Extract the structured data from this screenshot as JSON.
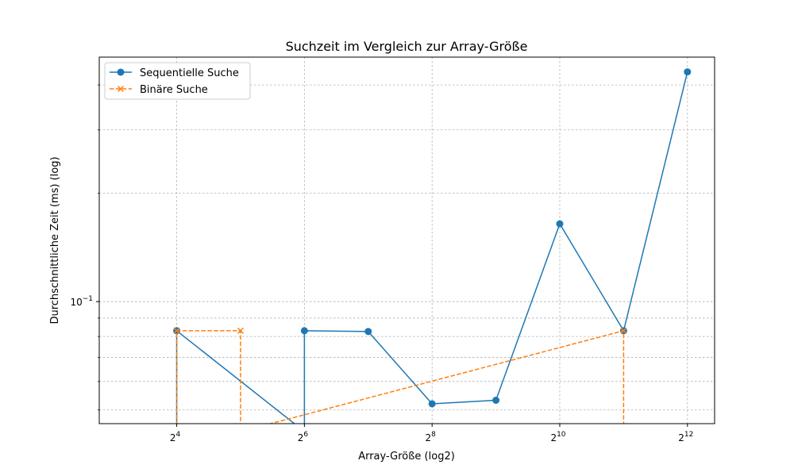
{
  "chart_data": {
    "type": "line",
    "title": "Suchzeit im Vergleich zur Array-Größe",
    "xlabel": "Array-Größe (log2)",
    "ylabel": "Durchschnittliche Zeit (ms) (log)",
    "x_scale": "log2",
    "y_scale": "log10",
    "xlim": [
      6.9,
      5500
    ],
    "ylim": [
      0.0458,
      0.478
    ],
    "xticks": [
      {
        "value": 16,
        "base": "2",
        "exp": "4"
      },
      {
        "value": 64,
        "base": "2",
        "exp": "6"
      },
      {
        "value": 256,
        "base": "2",
        "exp": "8"
      },
      {
        "value": 1024,
        "base": "2",
        "exp": "10"
      },
      {
        "value": 4096,
        "base": "2",
        "exp": "12"
      }
    ],
    "yticks": [
      {
        "value": 0.1,
        "base": "10",
        "exp": "−1"
      }
    ],
    "grid": true,
    "legend_position": "top-left",
    "series": [
      {
        "name": "Sequentielle Suche",
        "color": "#1f77b4",
        "marker": "circle",
        "linestyle": "solid",
        "x": [
          16,
          16,
          64,
          64,
          128,
          256,
          512,
          1024,
          2048,
          4096
        ],
        "y": [
          0,
          0.083,
          0,
          0.083,
          0.0826,
          0.052,
          0.0532,
          0.1645,
          0.083,
          0.435
        ]
      },
      {
        "name": "Binäre Suche",
        "color": "#ff7f0e",
        "marker": "x",
        "linestyle": "dashed",
        "x": [
          16,
          16,
          32,
          32,
          2048,
          2048
        ],
        "y": [
          0,
          0.083,
          0.083,
          0,
          0.083,
          0
        ]
      }
    ]
  }
}
